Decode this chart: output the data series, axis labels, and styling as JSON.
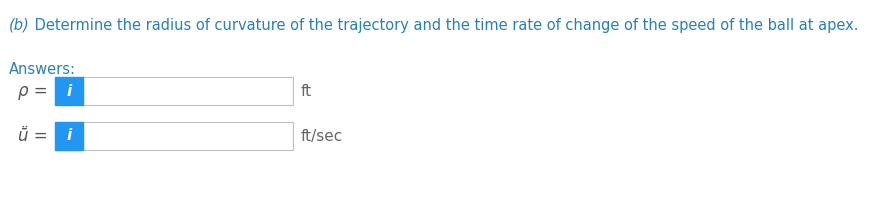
{
  "title_italic": "(b)",
  "title_normal": " Determine the radius of curvature of the trajectory and the time rate of change of the speed of the ball at apex.",
  "answers_label": "Answers:",
  "row1_label": "ρ =",
  "row1_unit": "ft",
  "row2_label": "ṻ =",
  "row2_unit": "ft/sec",
  "blue_color": "#2980b9",
  "button_color": "#2196F3",
  "background_color": "#ffffff",
  "label_color": "#555555",
  "unit_color": "#666666",
  "figwidth": 8.96,
  "figheight": 2.21,
  "dpi": 100
}
